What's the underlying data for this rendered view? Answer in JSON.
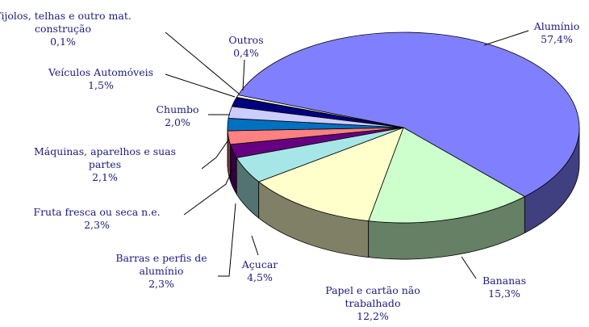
{
  "chart_data": {
    "type": "pie",
    "categories": [
      "Alumínio",
      "Bananas",
      "Papel e cartão não trabalhado",
      "Açucar",
      "Barras e perfis de alumínio",
      "Fruta fresca ou seca n.e.",
      "Máquinas, aparelhos e suas partes",
      "Chumbo",
      "Veículos Automóveis",
      "Tijolos, telhas e outro mat. construção",
      "Outros"
    ],
    "values": [
      57.4,
      15.3,
      12.2,
      4.5,
      2.3,
      2.3,
      2.1,
      2.0,
      1.5,
      0.1,
      0.4
    ],
    "value_labels": [
      "57,4%",
      "15,3%",
      "12,2%",
      "4,5%",
      "2,3%",
      "2,3%",
      "2,1%",
      "2,0%",
      "1,5%",
      "0,1%",
      "0,4%"
    ],
    "colors": [
      "#8080ff",
      "#ccffcc",
      "#ffffcc",
      "#a6e6e6",
      "#660080",
      "#ff8080",
      "#0070c0",
      "#ccccff",
      "#000080",
      "#ff00ff",
      "#ffffff"
    ]
  }
}
